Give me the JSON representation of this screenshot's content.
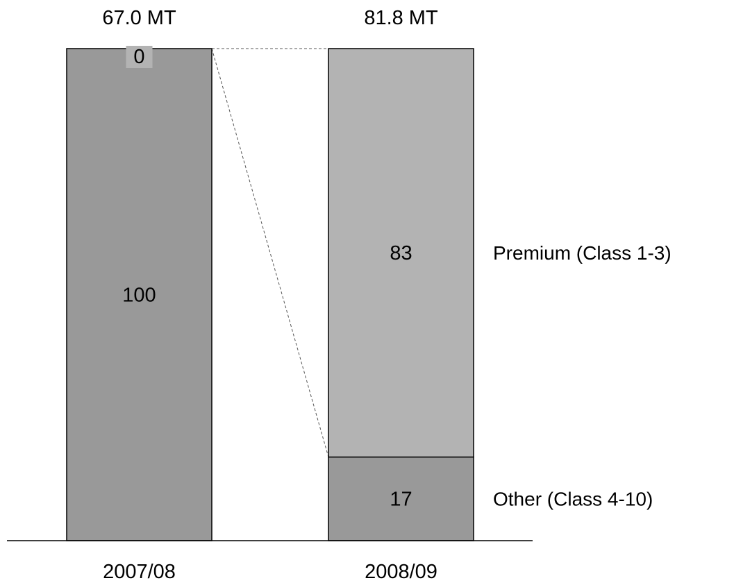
{
  "chart_data": {
    "type": "bar",
    "stacked": true,
    "normalized_percent": true,
    "categories": [
      "2007/08",
      "2008/09"
    ],
    "totals": [
      "67.0 MT",
      "81.8 MT"
    ],
    "series": [
      {
        "name": "Other (Class 4-10)",
        "values": [
          100,
          17
        ],
        "labels": [
          "100",
          "17"
        ],
        "color": "#999999"
      },
      {
        "name": "Premium (Class 1-3)",
        "values": [
          0,
          83
        ],
        "labels": [
          "0",
          "83"
        ],
        "color": "#b3b3b3"
      }
    ],
    "ylim": [
      0,
      100
    ],
    "grid": false,
    "legend": "right",
    "connector_lines": true
  }
}
